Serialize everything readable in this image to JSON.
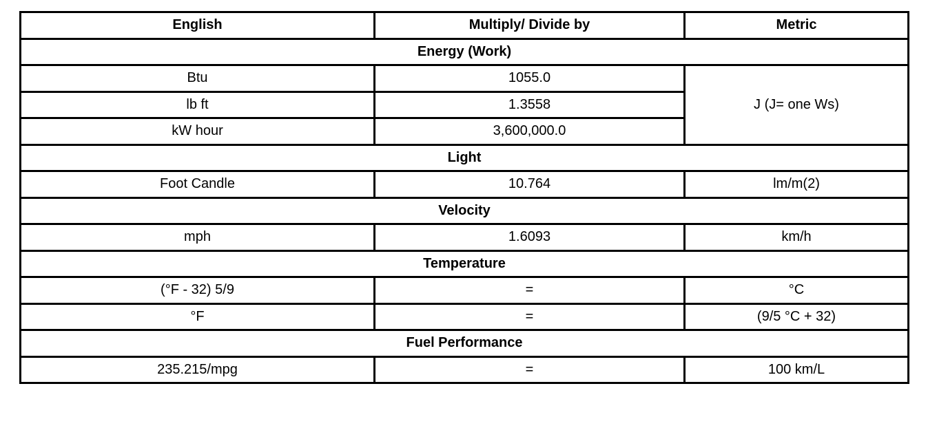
{
  "header": {
    "english": "English",
    "factor": "Multiply/ Divide by",
    "metric": "Metric"
  },
  "sections": {
    "energy": {
      "title": "Energy (Work)",
      "metric": "J (J= one Ws)",
      "rows": [
        {
          "english": "Btu",
          "factor": "1055.0"
        },
        {
          "english": "lb ft",
          "factor": "1.3558"
        },
        {
          "english": "kW hour",
          "factor": "3,600,000.0"
        }
      ]
    },
    "light": {
      "title": "Light",
      "rows": [
        {
          "english": "Foot Candle",
          "factor": "10.764",
          "metric": "lm/m(2)"
        }
      ]
    },
    "velocity": {
      "title": "Velocity",
      "rows": [
        {
          "english": "mph",
          "factor": "1.6093",
          "metric": "km/h"
        }
      ]
    },
    "temperature": {
      "title": "Temperature",
      "rows": [
        {
          "english": "(°F - 32) 5/9",
          "factor": "=",
          "metric": "°C"
        },
        {
          "english": "°F",
          "factor": "=",
          "metric": "(9/5 °C + 32)"
        }
      ]
    },
    "fuel": {
      "title": "Fuel Performance",
      "rows": [
        {
          "english": "235.215/mpg",
          "factor": "=",
          "metric": "100 km/L"
        }
      ]
    }
  }
}
